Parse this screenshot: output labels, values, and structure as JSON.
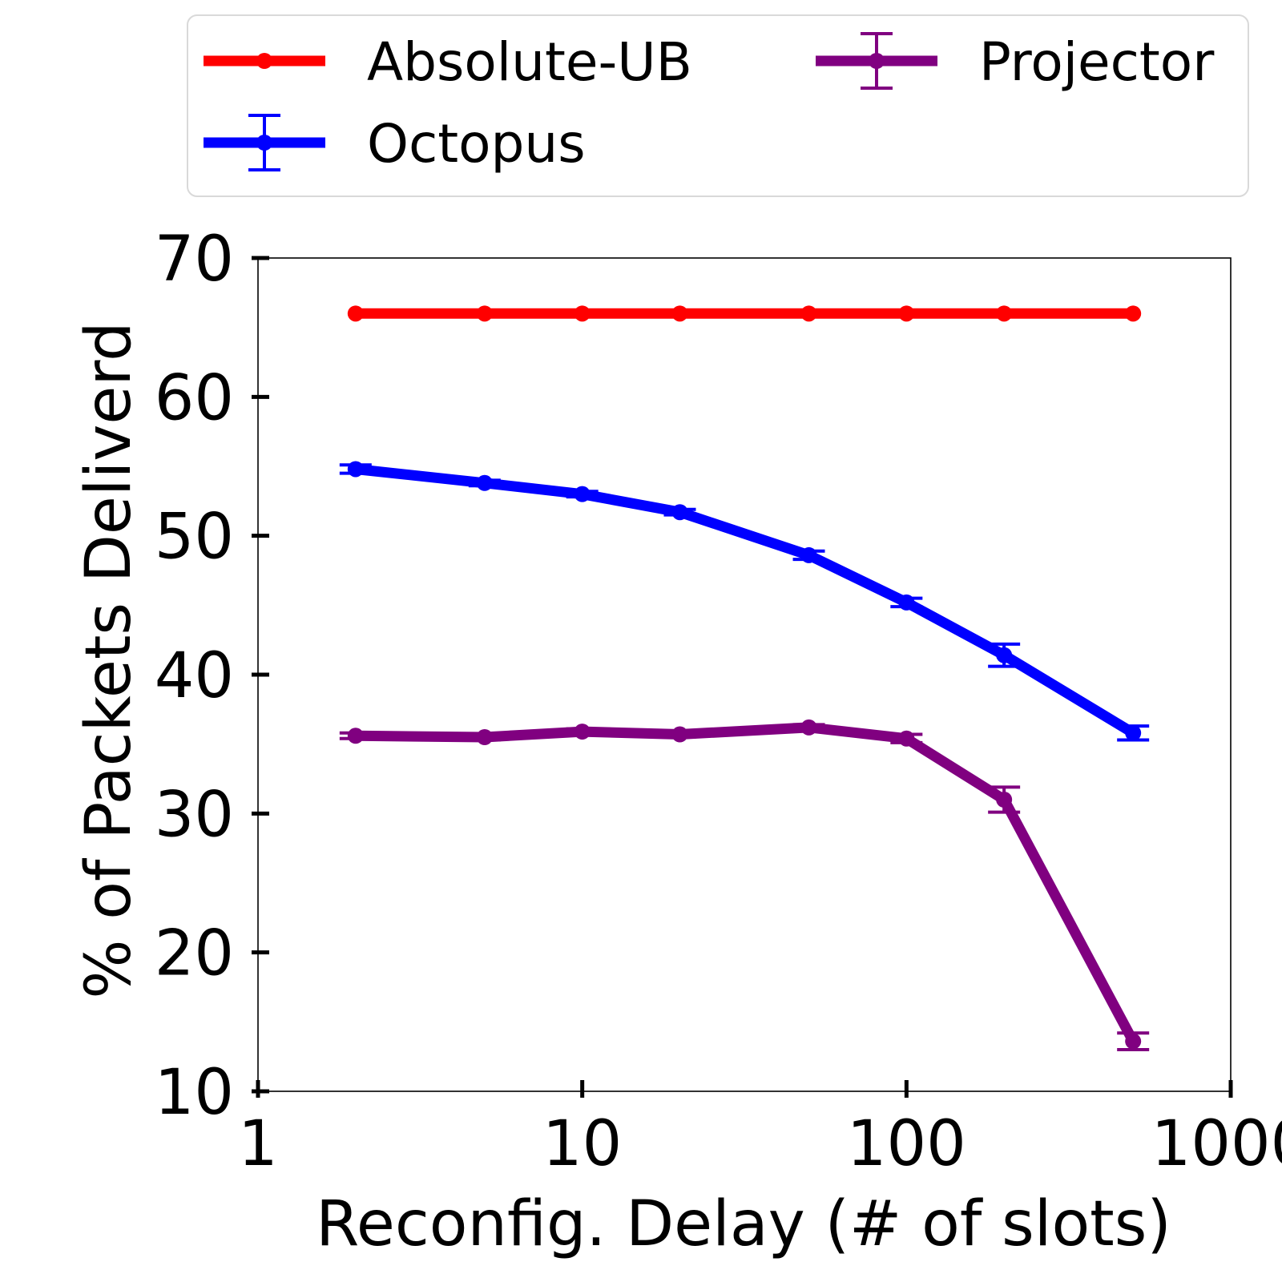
{
  "chart_data": {
    "type": "line",
    "xscale": "log",
    "xlabel": "Reconfig. Delay (# of slots)",
    "ylabel": "% of Packets Deliverd",
    "xlim": [
      1,
      1000
    ],
    "ylim": [
      10,
      70
    ],
    "xticks": [
      1,
      10,
      100,
      1000
    ],
    "xtick_labels": [
      "1",
      "10",
      "100",
      "1000"
    ],
    "yticks": [
      10,
      20,
      30,
      40,
      50,
      60,
      70
    ],
    "ytick_labels": [
      "10",
      "20",
      "30",
      "40",
      "50",
      "60",
      "70"
    ],
    "grid": false,
    "legend_placement": "top",
    "x": [
      2,
      5,
      10,
      20,
      50,
      100,
      200,
      500
    ],
    "series": [
      {
        "name": "Absolute-UB",
        "color": "#ff0000",
        "values": [
          66,
          66,
          66,
          66,
          66,
          66,
          66,
          66
        ],
        "errors": null
      },
      {
        "name": "Octopus",
        "color": "#0000ff",
        "values": [
          54.8,
          53.8,
          53.0,
          51.7,
          48.6,
          45.2,
          41.4,
          35.8
        ],
        "errors": [
          0.3,
          0.2,
          0.2,
          0.2,
          0.3,
          0.3,
          0.8,
          0.5
        ]
      },
      {
        "name": "Projector",
        "color": "#800080",
        "values": [
          35.6,
          35.5,
          35.9,
          35.7,
          36.2,
          35.4,
          31.0,
          13.6
        ],
        "errors": [
          0.2,
          0.2,
          0.2,
          0.2,
          0.2,
          0.3,
          0.9,
          0.6
        ]
      }
    ]
  }
}
